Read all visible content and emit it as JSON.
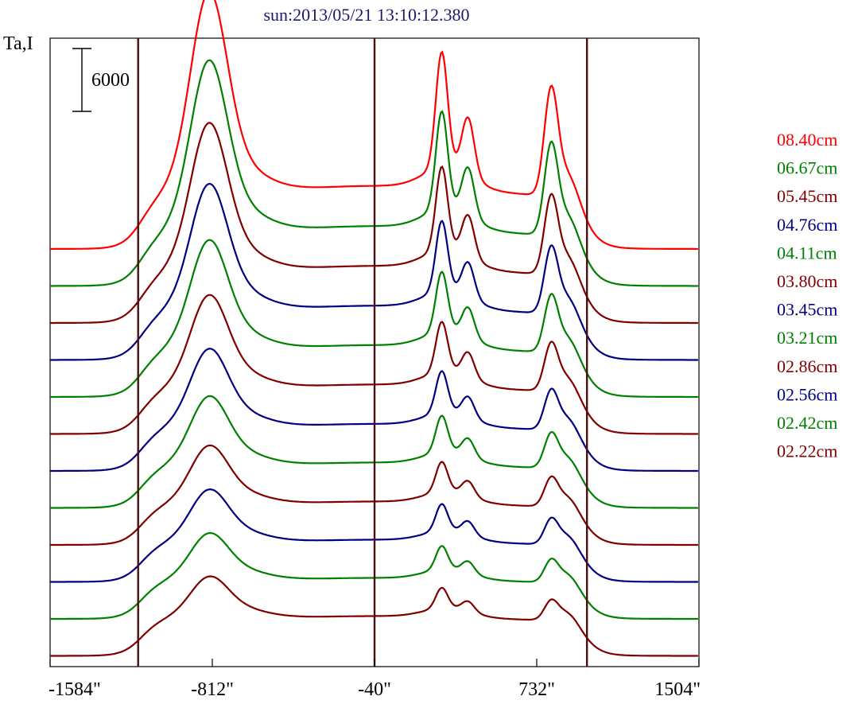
{
  "chart_data": {
    "type": "line",
    "title": "sun:2013/05/21 13:10:12.380",
    "ylabel": "Ta,I",
    "scale_bar_label": "6000",
    "xlim": [
      -1584,
      1504
    ],
    "x_ticks": [
      -1584,
      -812,
      -40,
      732,
      1504
    ],
    "x_tick_labels": [
      "-1584\"",
      "-812\"",
      "-40\"",
      "732\"",
      "1504\""
    ],
    "vertical_markers": [
      -1165,
      -40,
      971
    ],
    "colors": {
      "red": "#ff0000",
      "green": "#008000",
      "maroon": "#800000",
      "navy": "#000080",
      "marker": "#4a1010"
    },
    "series": [
      {
        "name": "08.40cm",
        "color": "#ff0000",
        "baseline": 0,
        "amp": 1.0
      },
      {
        "name": "06.67cm",
        "color": "#008000",
        "baseline": 1,
        "amp": 0.92
      },
      {
        "name": "05.45cm",
        "color": "#800000",
        "baseline": 2,
        "amp": 0.85
      },
      {
        "name": "04.76cm",
        "color": "#000080",
        "baseline": 3,
        "amp": 0.78
      },
      {
        "name": "04.11cm",
        "color": "#008000",
        "baseline": 4,
        "amp": 0.72
      },
      {
        "name": "03.80cm",
        "color": "#800000",
        "baseline": 5,
        "amp": 0.66
      },
      {
        "name": "03.45cm",
        "color": "#000080",
        "baseline": 6,
        "amp": 0.6
      },
      {
        "name": "03.21cm",
        "color": "#008000",
        "baseline": 7,
        "amp": 0.56
      },
      {
        "name": "02.86cm",
        "color": "#800000",
        "baseline": 8,
        "amp": 0.51
      },
      {
        "name": "02.56cm",
        "color": "#000080",
        "baseline": 9,
        "amp": 0.48
      },
      {
        "name": "02.42cm",
        "color": "#008000",
        "baseline": 10,
        "amp": 0.45
      },
      {
        "name": "02.22cm",
        "color": "#800000",
        "baseline": 11,
        "amp": 0.42
      }
    ]
  }
}
